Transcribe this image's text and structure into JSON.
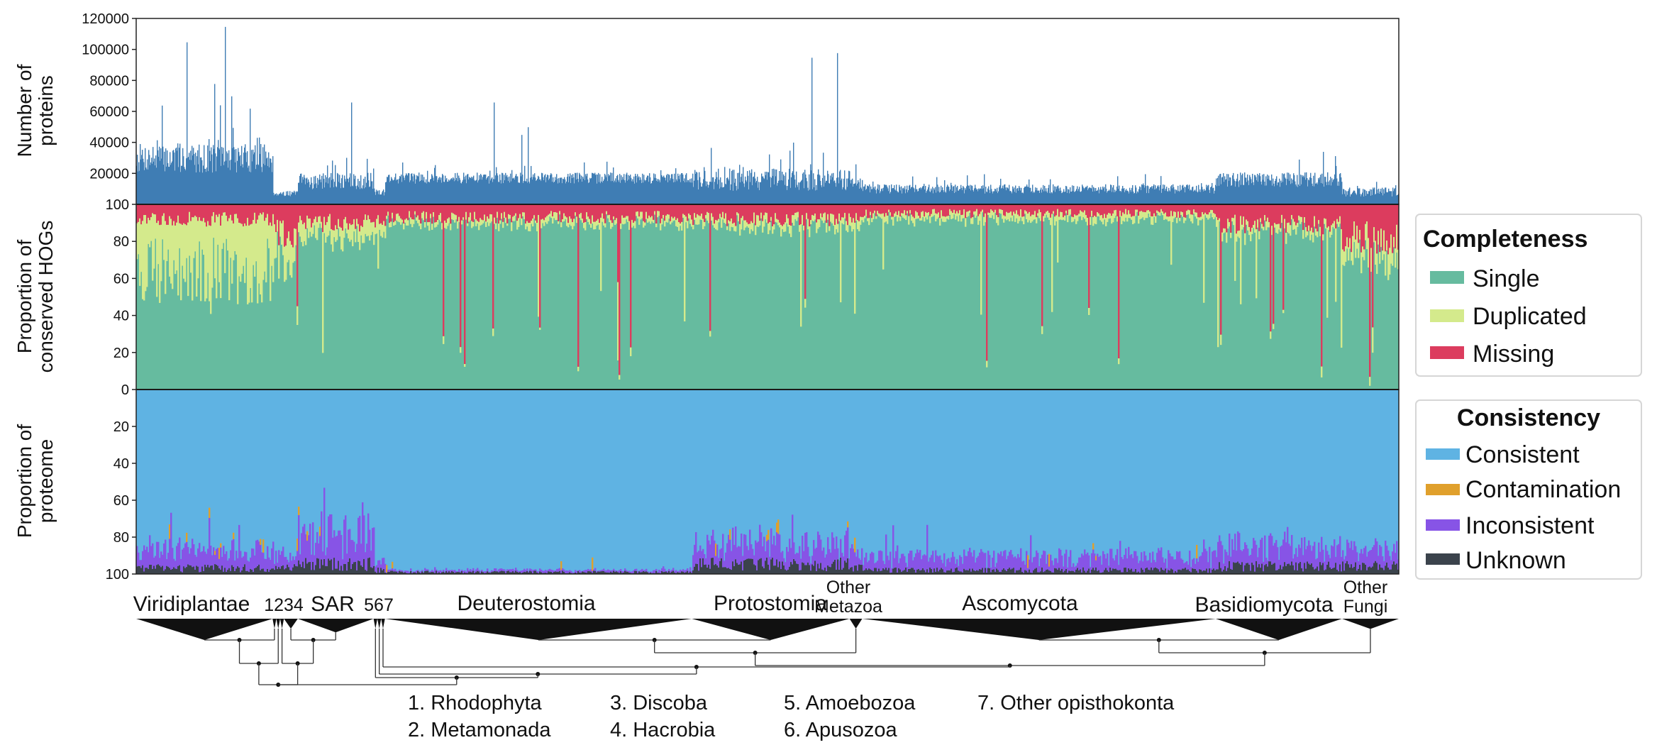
{
  "colors": {
    "protein_bar": "#3f7db4",
    "single": "#66bb9f",
    "duplicated": "#d4ea8c",
    "missing": "#dc3c5e",
    "consistent": "#5fb3e3",
    "contamination": "#e0a02c",
    "inconsistent": "#8754e6",
    "unknown": "#3b434c"
  },
  "chart_data": [
    {
      "type": "bar",
      "panel": "top",
      "ylabel_lines": [
        "Number of",
        "proteins"
      ],
      "ylim": [
        0,
        120000
      ],
      "yticks": [
        "20000",
        "40000",
        "60000",
        "80000",
        "100000",
        "120000"
      ],
      "ytick_values": [
        20000,
        40000,
        60000,
        80000,
        100000,
        120000
      ],
      "series": [
        {
          "segments": [
            {
              "clade": "Viridiplantae",
              "typical": 30000,
              "var": 16000,
              "spikes": [
                [
                  0.04,
                  105000
                ],
                [
                  0.07,
                  115000
                ],
                [
                  0.075,
                  70000
                ],
                [
                  0.062,
                  78000
                ],
                [
                  0.02,
                  64000
                ],
                [
                  0.09,
                  62000
                ]
              ]
            },
            {
              "clade": "1234",
              "typical": 7000,
              "var": 3000,
              "spikes": []
            },
            {
              "clade": "SAR",
              "typical": 15000,
              "var": 9000,
              "spikes": [
                [
                  0.17,
                  66000
                ]
              ]
            },
            {
              "clade": "567",
              "typical": 8000,
              "var": 4000,
              "spikes": []
            },
            {
              "clade": "Deuterostomia",
              "typical": 17000,
              "var": 6000,
              "spikes": [
                [
                  0.283,
                  66000
                ],
                [
                  0.31,
                  50000
                ],
                [
                  0.305,
                  45000
                ]
              ]
            },
            {
              "clade": "Protostomia",
              "typical": 16000,
              "var": 12000,
              "spikes": [
                [
                  0.535,
                  95000
                ],
                [
                  0.555,
                  98000
                ],
                [
                  0.52,
                  40000
                ]
              ]
            },
            {
              "clade": "Other Metazoa",
              "typical": 14000,
              "var": 7000,
              "spikes": []
            },
            {
              "clade": "Ascomycota",
              "typical": 10000,
              "var": 5000,
              "spikes": []
            },
            {
              "clade": "Basidiomycota",
              "typical": 16000,
              "var": 8000,
              "spikes": [
                [
                  0.94,
                  34000
                ]
              ]
            },
            {
              "clade": "Other Fungi",
              "typical": 8000,
              "var": 5000,
              "spikes": []
            }
          ]
        }
      ]
    },
    {
      "type": "bar",
      "stacked": true,
      "panel": "middle",
      "ylabel_lines": [
        "Proportion of",
        "conserved HOGs"
      ],
      "ylim": [
        0,
        100
      ],
      "yticks": [
        "0",
        "20",
        "40",
        "60",
        "80",
        "100"
      ],
      "ytick_values": [
        0,
        20,
        40,
        60,
        80,
        100
      ],
      "series": [
        {
          "name": "Single",
          "typical_by_clade": [
            62,
            72,
            82,
            84,
            90,
            88,
            89,
            92,
            85,
            72
          ]
        },
        {
          "name": "Duplicated",
          "typical_by_clade": [
            30,
            12,
            8,
            6,
            3,
            4,
            4,
            3,
            4,
            10
          ]
        },
        {
          "name": "Missing",
          "typical_by_clade": [
            8,
            16,
            10,
            10,
            7,
            8,
            7,
            5,
            11,
            18
          ]
        }
      ]
    },
    {
      "type": "bar",
      "stacked": true,
      "panel": "bottom",
      "ylabel_lines": [
        "Proportion of",
        "proteome"
      ],
      "ylim": [
        100,
        0
      ],
      "yticks": [
        "20",
        "40",
        "60",
        "80",
        "100"
      ],
      "ytick_values": [
        20,
        40,
        60,
        80,
        100
      ],
      "series": [
        {
          "name": "Consistent",
          "typical_by_clade": [
            86,
            90,
            78,
            92,
            98,
            83,
            88,
            90,
            85,
            85
          ]
        },
        {
          "name": "Contamination",
          "typical_by_clade": [
            1,
            1,
            1,
            1,
            0,
            1,
            1,
            1,
            1,
            1
          ]
        },
        {
          "name": "Inconsistent",
          "typical_by_clade": [
            10,
            6,
            16,
            5,
            1,
            11,
            8,
            7,
            10,
            10
          ]
        },
        {
          "name": "Unknown",
          "typical_by_clade": [
            3,
            3,
            5,
            2,
            1,
            5,
            3,
            2,
            4,
            4
          ]
        }
      ]
    }
  ],
  "clades": [
    {
      "label": "Viridiplantae",
      "start": 0.0,
      "end": 0.108
    },
    {
      "label": "1",
      "start": 0.108,
      "end": 0.111
    },
    {
      "label": "2",
      "start": 0.111,
      "end": 0.114
    },
    {
      "label": "3",
      "start": 0.114,
      "end": 0.117
    },
    {
      "label": "4",
      "start": 0.117,
      "end": 0.128
    },
    {
      "label": "SAR",
      "start": 0.128,
      "end": 0.188
    },
    {
      "label": "5",
      "start": 0.188,
      "end": 0.191
    },
    {
      "label": "6",
      "start": 0.191,
      "end": 0.194
    },
    {
      "label": "7",
      "start": 0.194,
      "end": 0.197
    },
    {
      "label": "Deuterostomia",
      "start": 0.197,
      "end": 0.44
    },
    {
      "label": "Protostomia",
      "start": 0.44,
      "end": 0.565
    },
    {
      "label": "Other Metazoa",
      "start": 0.565,
      "end": 0.575
    },
    {
      "label": "Ascomycota",
      "start": 0.575,
      "end": 0.855
    },
    {
      "label": "Basidiomycota",
      "start": 0.855,
      "end": 0.955
    },
    {
      "label": "Other Fungi",
      "start": 0.955,
      "end": 1.0
    }
  ],
  "clade_labels": {
    "viridiplantae": "Viridiplantae",
    "numbers_1234": "1234",
    "sar": "SAR",
    "numbers_567": "567",
    "deuterostomia": "Deuterostomia",
    "protostomia": "Protostomia",
    "other_metazoa_1": "Other",
    "other_metazoa_2": "Metazoa",
    "ascomycota": "Ascomycota",
    "basidiomycota": "Basidiomycota",
    "other_fungi_1": "Other",
    "other_fungi_2": "Fungi"
  },
  "footnotes": [
    "1. Rhodophyta",
    "2. Metamonada",
    "3. Discoba",
    "4. Hacrobia",
    "5. Amoebozoa",
    "6. Apusozoa",
    "7. Other opisthokonta"
  ],
  "legend": {
    "completeness": {
      "title": "Completeness",
      "items": [
        "Single",
        "Duplicated",
        "Missing"
      ]
    },
    "consistency": {
      "title": "Consistency",
      "items": [
        "Consistent",
        "Contamination",
        "Inconsistent",
        "Unknown"
      ]
    }
  }
}
